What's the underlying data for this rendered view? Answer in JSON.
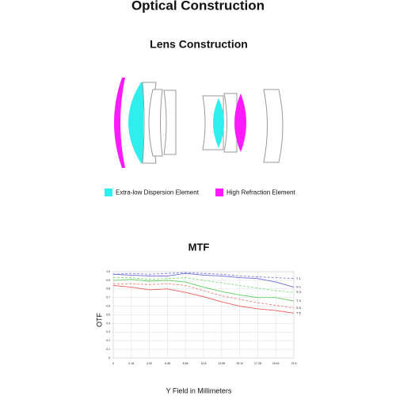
{
  "title": "Optical Construction",
  "lens_section": {
    "title": "Lens Construction",
    "legend": [
      {
        "label": "Extra-low Dispersion Element",
        "color": "#2eeeee"
      },
      {
        "label": "High Refraction Element",
        "color": "#ff1aff"
      }
    ]
  },
  "chart_data": {
    "type": "line",
    "title": "MTF",
    "x_label": "Y Field in Millimeters",
    "y_label": "OTF",
    "x": [
      0,
      2.16,
      4.32,
      6.48,
      8.64,
      10.8,
      12.96,
      15.12,
      17.28,
      19.44,
      21.6
    ],
    "xlim": [
      0,
      21.6
    ],
    "xticks": [
      0,
      2.16,
      4.32,
      6.48,
      8.64,
      10.8,
      12.96,
      15.12,
      17.28,
      19.44,
      21.6
    ],
    "ylim": [
      0,
      1
    ],
    "yticks": [
      0,
      0.1,
      0.2,
      0.3,
      0.4,
      0.5,
      0.6,
      0.7,
      0.8,
      0.9,
      {
        "value": 1,
        "label": "1.0"
      }
    ],
    "grid": true,
    "series": [
      {
        "name": "T 1",
        "color": "#7f7fe0",
        "dashed": true,
        "values": [
          0.97,
          0.98,
          0.97,
          0.98,
          0.99,
          0.98,
          0.97,
          0.95,
          0.94,
          0.93,
          0.92
        ]
      },
      {
        "name": "S 1",
        "color": "#6a6ad8",
        "dashed": false,
        "values": [
          0.97,
          0.96,
          0.95,
          0.95,
          0.98,
          0.96,
          0.95,
          0.93,
          0.92,
          0.88,
          0.82
        ]
      },
      {
        "name": "S 3",
        "color": "#7fe07f",
        "dashed": true,
        "values": [
          0.93,
          0.93,
          0.91,
          0.92,
          0.93,
          0.9,
          0.87,
          0.84,
          0.81,
          0.78,
          0.76
        ]
      },
      {
        "name": "T 3",
        "color": "#5fd05f",
        "dashed": false,
        "values": [
          0.9,
          0.91,
          0.89,
          0.9,
          0.88,
          0.82,
          0.77,
          0.73,
          0.7,
          0.7,
          0.66
        ]
      },
      {
        "name": "S 5",
        "color": "#f08080",
        "dashed": true,
        "values": [
          0.86,
          0.86,
          0.85,
          0.86,
          0.84,
          0.78,
          0.72,
          0.68,
          0.64,
          0.61,
          0.58
        ]
      },
      {
        "name": "T 5",
        "color": "#e85a5a",
        "dashed": false,
        "values": [
          0.84,
          0.82,
          0.79,
          0.8,
          0.76,
          0.71,
          0.65,
          0.6,
          0.57,
          0.55,
          0.52
        ]
      }
    ]
  }
}
